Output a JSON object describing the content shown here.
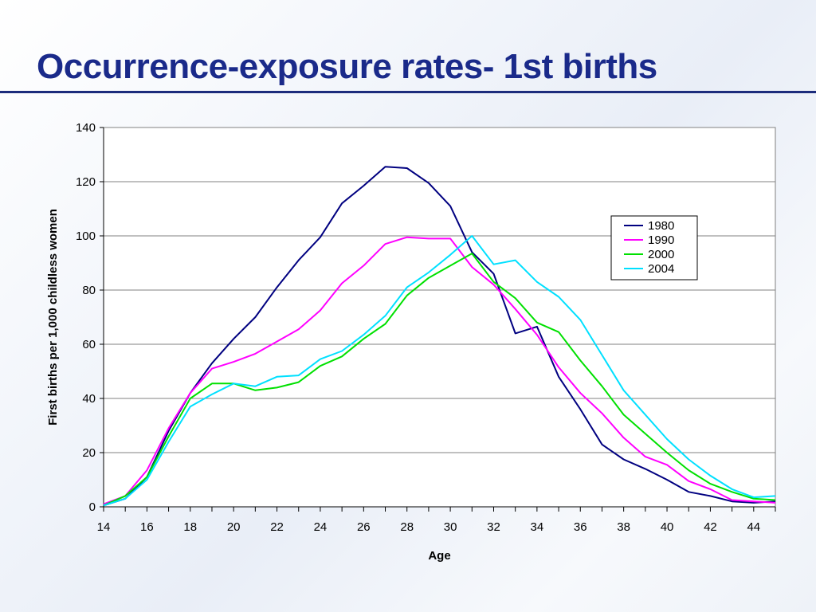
{
  "title": "Occurrence-exposure rates- 1st births",
  "chart_data": {
    "type": "line",
    "xlabel": "Age",
    "ylabel": "First births per 1,000 childless women",
    "xlim": [
      14,
      45
    ],
    "ylim": [
      0,
      140
    ],
    "x_ticks": [
      14,
      16,
      18,
      20,
      22,
      24,
      26,
      28,
      30,
      32,
      34,
      36,
      38,
      40,
      42,
      44
    ],
    "y_ticks": [
      0,
      20,
      40,
      60,
      80,
      100,
      120,
      140
    ],
    "grid": "horizontal",
    "legend_position": "right",
    "x": [
      14,
      15,
      16,
      17,
      18,
      19,
      20,
      21,
      22,
      23,
      24,
      25,
      26,
      27,
      28,
      29,
      30,
      31,
      32,
      33,
      34,
      35,
      36,
      37,
      38,
      39,
      40,
      41,
      42,
      43,
      44,
      45
    ],
    "series": [
      {
        "name": "1980",
        "color": "#000080",
        "values": [
          0.5,
          3,
          11,
          28,
          42,
          53,
          62,
          70,
          81,
          91,
          99.5,
          112,
          118.5,
          125.5,
          125,
          119.5,
          111,
          94,
          86,
          64,
          66.5,
          48,
          36,
          23,
          17.5,
          14,
          10,
          5.5,
          4,
          2,
          1.5,
          2
        ]
      },
      {
        "name": "1990",
        "color": "#ff00ff",
        "values": [
          1,
          4,
          13.5,
          29,
          42,
          51,
          53.5,
          56.5,
          61,
          65.5,
          72.5,
          82.5,
          89,
          97,
          99.5,
          99,
          99,
          88.5,
          82,
          73,
          63.5,
          51.5,
          42,
          34.5,
          25.5,
          18.5,
          15.5,
          9.5,
          6.5,
          2.5,
          2,
          1.5
        ]
      },
      {
        "name": "2000",
        "color": "#00e000",
        "values": [
          0.5,
          4,
          11,
          26,
          40,
          45.5,
          45.5,
          43,
          44,
          46,
          52,
          55.5,
          62,
          67.5,
          78,
          84.5,
          89,
          93.5,
          83,
          77,
          68,
          64.5,
          54,
          44.5,
          34,
          27,
          20,
          13.5,
          8.5,
          5.5,
          3,
          2.5
        ]
      },
      {
        "name": "2004",
        "color": "#00e0ff",
        "values": [
          0.5,
          3,
          10,
          24,
          37,
          41.5,
          45.5,
          44.5,
          48,
          48.5,
          54.5,
          57.5,
          63.5,
          70.5,
          81,
          86.5,
          93,
          100,
          89.5,
          91,
          83,
          77.5,
          69,
          56,
          43,
          34,
          25,
          17.5,
          11.5,
          6.5,
          3.5,
          4
        ]
      }
    ]
  }
}
